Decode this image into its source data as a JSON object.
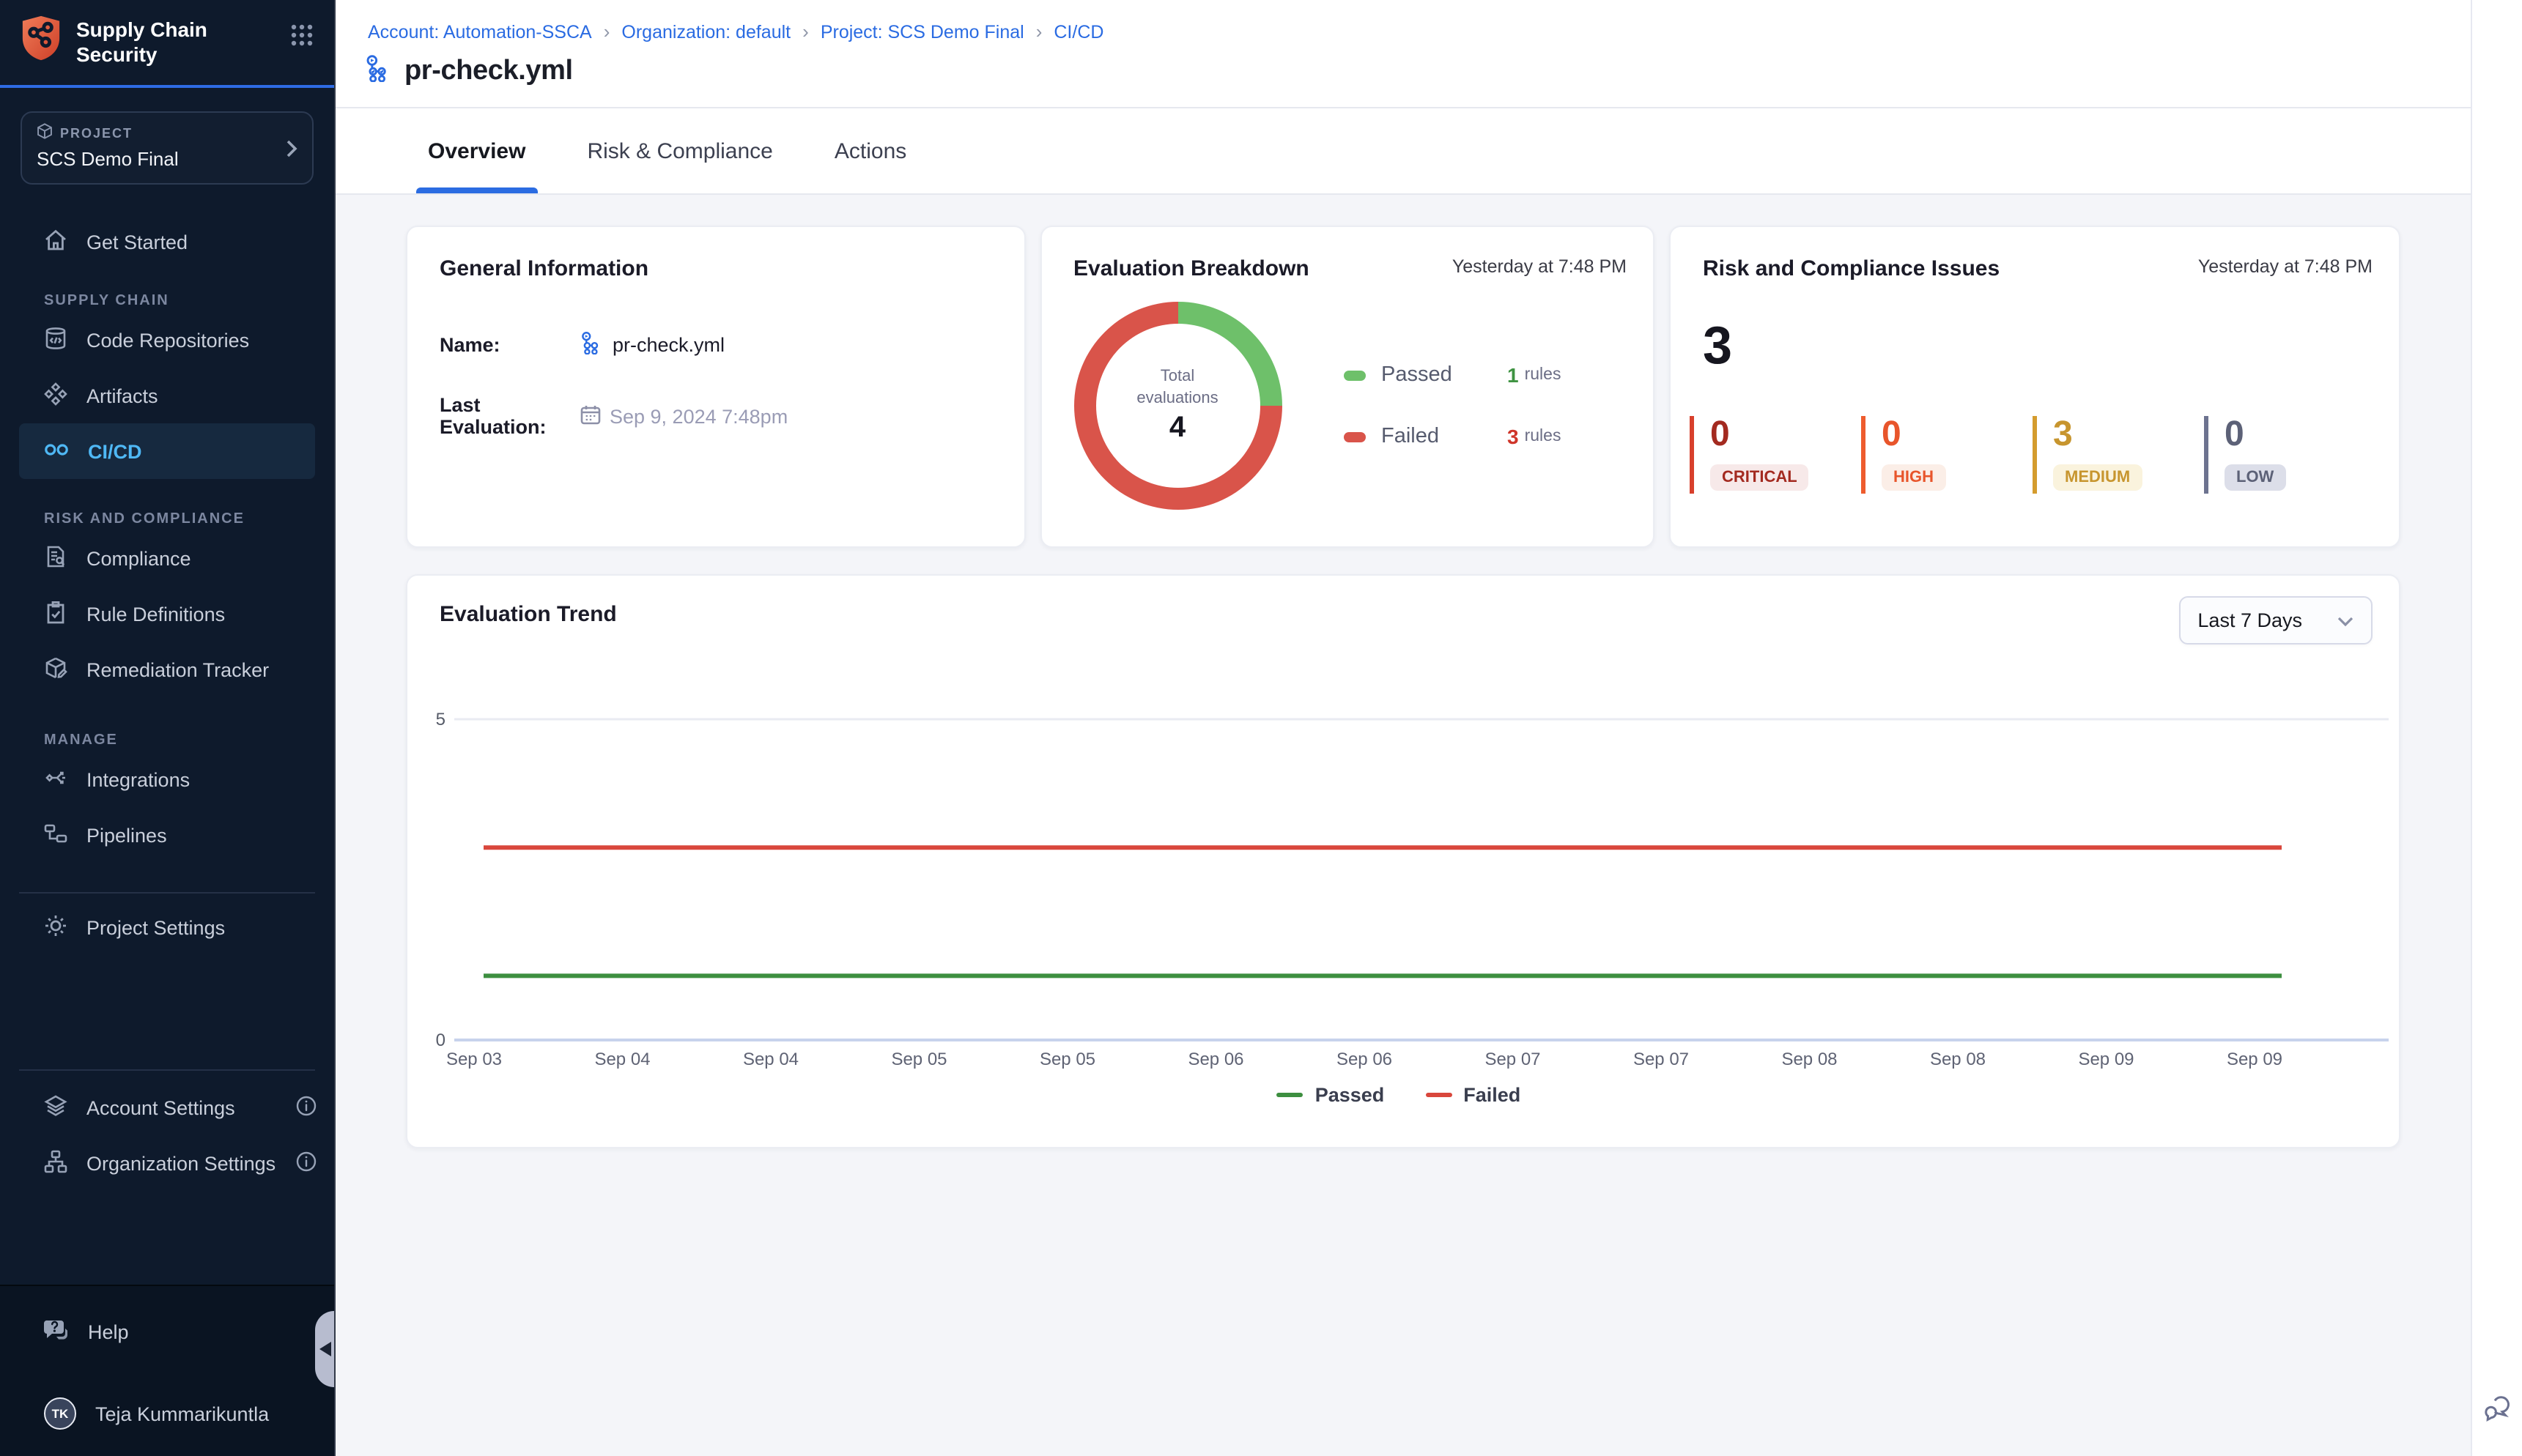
{
  "app": {
    "product_title": "Supply Chain Security"
  },
  "icons": {
    "logo": "shield-molecule",
    "apps_grid": "nine-dot-grid",
    "project": "cube",
    "chevron_right": "chevron-right",
    "chevron_down": "chevron-down",
    "pipeline": "pipeline-graph-blue",
    "calendar": "calendar",
    "chat": "chat-bubbles"
  },
  "sidebar": {
    "project": {
      "label": "PROJECT",
      "name": "SCS Demo Final"
    },
    "nav": {
      "get_started": "Get Started",
      "supply_chain_header": "SUPPLY CHAIN",
      "code_repositories": "Code Repositories",
      "artifacts": "Artifacts",
      "cicd": "CI/CD",
      "risk_header": "RISK AND COMPLIANCE",
      "compliance": "Compliance",
      "rule_definitions": "Rule Definitions",
      "remediation_tracker": "Remediation Tracker",
      "manage_header": "MANAGE",
      "integrations": "Integrations",
      "pipelines": "Pipelines",
      "project_settings": "Project Settings",
      "account_settings": "Account Settings",
      "organization_settings": "Organization Settings"
    },
    "help": "Help",
    "user": {
      "initials": "TK",
      "name": "Teja Kummarikuntla"
    }
  },
  "header": {
    "breadcrumbs": [
      {
        "label": "Account: Automation-SSCA"
      },
      {
        "label": "Organization: default"
      },
      {
        "label": "Project: SCS Demo Final"
      },
      {
        "label": "CI/CD"
      }
    ],
    "separator": "›",
    "title": "pr-check.yml",
    "tabs": [
      {
        "label": "Overview"
      },
      {
        "label": "Risk & Compliance"
      },
      {
        "label": "Actions"
      }
    ]
  },
  "cards": {
    "general": {
      "title": "General Information",
      "name_label": "Name:",
      "name_value": "pr-check.yml",
      "last_eval_label": "Last Evaluation:",
      "last_eval_value": "Sep 9, 2024 7:48pm"
    },
    "breakdown": {
      "title": "Evaluation Breakdown",
      "timestamp": "Yesterday at 7:48 PM",
      "center_label": "Total evaluations",
      "center_value": "4",
      "legend": [
        {
          "label": "Passed",
          "count": "1",
          "unit": "rules",
          "color": "#6ec06a",
          "count_color": "#3f9342"
        },
        {
          "label": "Failed",
          "count": "3",
          "unit": "rules",
          "color": "#d9544a",
          "count_color": "#cf352a"
        }
      ]
    },
    "risk": {
      "title": "Risk and Compliance Issues",
      "timestamp": "Yesterday at 7:48 PM",
      "total": "3",
      "severities": [
        {
          "label": "CRITICAL",
          "count": "0",
          "color": "#a32a20",
          "bar": "#d8402c",
          "badge_bg": "#f7e9e9"
        },
        {
          "label": "HIGH",
          "count": "0",
          "color": "#e8552b",
          "bar": "#ee5c2e",
          "badge_bg": "#fbeee7"
        },
        {
          "label": "MEDIUM",
          "count": "3",
          "color": "#c7952e",
          "bar": "#d49c2e",
          "badge_bg": "#faf3dd"
        },
        {
          "label": "LOW",
          "count": "0",
          "color": "#5c6177",
          "bar": "#6d7390",
          "badge_bg": "#dcdee9"
        }
      ]
    },
    "trend": {
      "title": "Evaluation Trend",
      "range_selector": "Last 7 Days"
    }
  },
  "chart_data": [
    {
      "type": "pie",
      "title": "Evaluation Breakdown",
      "labels": [
        "Passed",
        "Failed"
      ],
      "values": [
        1,
        3
      ],
      "colors": [
        "#6ec06a",
        "#d9544a"
      ],
      "center_label": "Total evaluations",
      "center_value": 4,
      "donut": true,
      "start_angle": "top",
      "legend_position": "right"
    },
    {
      "type": "line",
      "title": "Evaluation Trend",
      "x": [
        "Sep 03",
        "Sep 04",
        "Sep 04",
        "Sep 05",
        "Sep 05",
        "Sep 06",
        "Sep 06",
        "Sep 07",
        "Sep 07",
        "Sep 08",
        "Sep 08",
        "Sep 09",
        "Sep 09"
      ],
      "series": [
        {
          "name": "Passed",
          "color": "#3d8f40",
          "values": [
            1,
            1,
            1,
            1,
            1,
            1,
            1,
            1,
            1,
            1,
            1,
            1,
            1
          ]
        },
        {
          "name": "Failed",
          "color": "#d9473c",
          "values": [
            3,
            3,
            3,
            3,
            3,
            3,
            3,
            3,
            3,
            3,
            3,
            3,
            3
          ]
        }
      ],
      "ylim": [
        0,
        5
      ],
      "yticks": [
        0,
        5
      ],
      "grid": "gridline at y=5, axis line at y=0",
      "legend_position": "bottom"
    }
  ]
}
